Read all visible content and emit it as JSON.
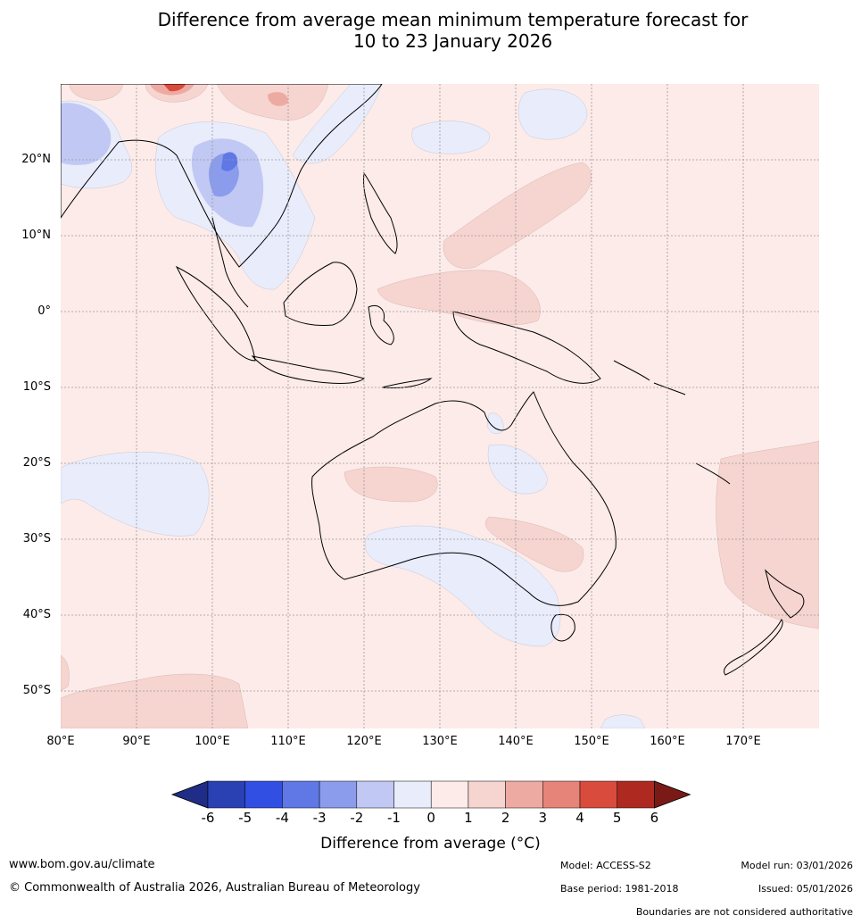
{
  "title": {
    "line1": "Difference from average mean minimum temperature forecast for",
    "line2": "10 to 23 January 2026"
  },
  "map": {
    "lat_labels": [
      "20°N",
      "10°N",
      "0°",
      "10°S",
      "20°S",
      "30°S",
      "40°S",
      "50°S"
    ],
    "lon_labels": [
      "80°E",
      "90°E",
      "100°E",
      "110°E",
      "120°E",
      "130°E",
      "140°E",
      "150°E",
      "160°E",
      "170°E"
    ]
  },
  "colorbar": {
    "ticks": [
      "-6",
      "-5",
      "-4",
      "-3",
      "-2",
      "-1",
      "0",
      "1",
      "2",
      "3",
      "4",
      "5",
      "6"
    ],
    "label": "Difference from average (°C)",
    "colors": [
      "#1f2d86",
      "#2a41b4",
      "#324fe3",
      "#5f78e6",
      "#8b9cec",
      "#c0c8f3",
      "#e8ecfb",
      "#fcebe8",
      "#f6d4d0",
      "#edaaa3",
      "#e78479",
      "#d94b3d",
      "#ae2a20",
      "#7a1a17"
    ]
  },
  "footer": {
    "website": "www.bom.gov.au/climate",
    "copyright": "© Commonwealth of Australia 2026, Australian Bureau of Meteorology",
    "model": "Model: ACCESS-S2",
    "model_run": "Model run: 03/01/2026",
    "base_period": "Base period: 1981-2018",
    "issued": "Issued: 05/01/2026",
    "boundaries": "Boundaries are not considered authoritative"
  }
}
